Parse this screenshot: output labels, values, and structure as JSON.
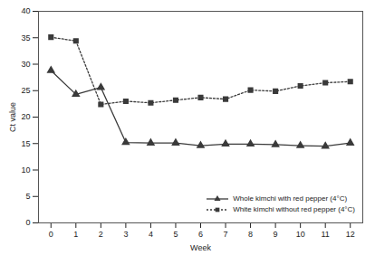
{
  "chart_data": {
    "type": "line",
    "x_label": "Week",
    "y_label": "Ct value",
    "x": [
      0,
      1,
      2,
      3,
      4,
      5,
      6,
      7,
      8,
      9,
      10,
      11,
      12
    ],
    "series": [
      {
        "name": "Whole kimchi with red pepper (4°C)",
        "color": "#3a3a3a",
        "marker": "triangle",
        "line_style": "solid",
        "values": [
          28.8,
          24.3,
          25.6,
          15.2,
          15.1,
          15.1,
          14.6,
          14.9,
          14.9,
          14.8,
          14.6,
          14.5,
          15.1
        ]
      },
      {
        "name": "White kimchi without red pepper (4°C)",
        "color": "#3a3a3a",
        "marker": "square",
        "line_style": "dotted",
        "values": [
          35.1,
          34.4,
          22.4,
          23.0,
          22.7,
          23.2,
          23.7,
          23.4,
          25.1,
          24.9,
          25.9,
          26.5,
          26.7
        ]
      }
    ],
    "xlim": [
      -0.5,
      12.5
    ],
    "xticks": [
      0,
      1,
      2,
      3,
      4,
      5,
      6,
      7,
      8,
      9,
      10,
      11,
      12
    ],
    "ylim": [
      0,
      40
    ],
    "yticks": [
      0,
      5,
      10,
      15,
      20,
      25,
      30,
      35,
      40
    ],
    "grid": false,
    "legend": "lower right"
  }
}
